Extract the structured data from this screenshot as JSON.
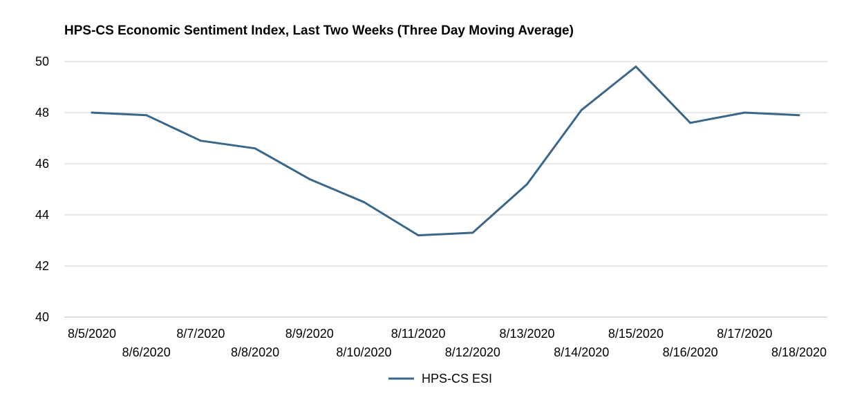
{
  "chart_data": {
    "type": "line",
    "title": "HPS-CS Economic Sentiment Index, Last Two Weeks (Three Day Moving Average)",
    "xlabel": "",
    "ylabel": "",
    "categories": [
      "8/5/2020",
      "8/6/2020",
      "8/7/2020",
      "8/8/2020",
      "8/9/2020",
      "8/10/2020",
      "8/11/2020",
      "8/12/2020",
      "8/13/2020",
      "8/14/2020",
      "8/15/2020",
      "8/16/2020",
      "8/17/2020",
      "8/18/2020"
    ],
    "series": [
      {
        "name": "HPS-CS ESI",
        "color": "#3a6789",
        "values": [
          48.0,
          47.9,
          46.9,
          46.6,
          45.4,
          44.5,
          43.2,
          43.3,
          45.2,
          48.1,
          49.8,
          47.6,
          48.0,
          47.9
        ]
      }
    ],
    "ylim": [
      40,
      50
    ],
    "yticks": [
      40,
      42,
      44,
      46,
      48,
      50
    ],
    "grid": true,
    "legend": "bottom"
  }
}
